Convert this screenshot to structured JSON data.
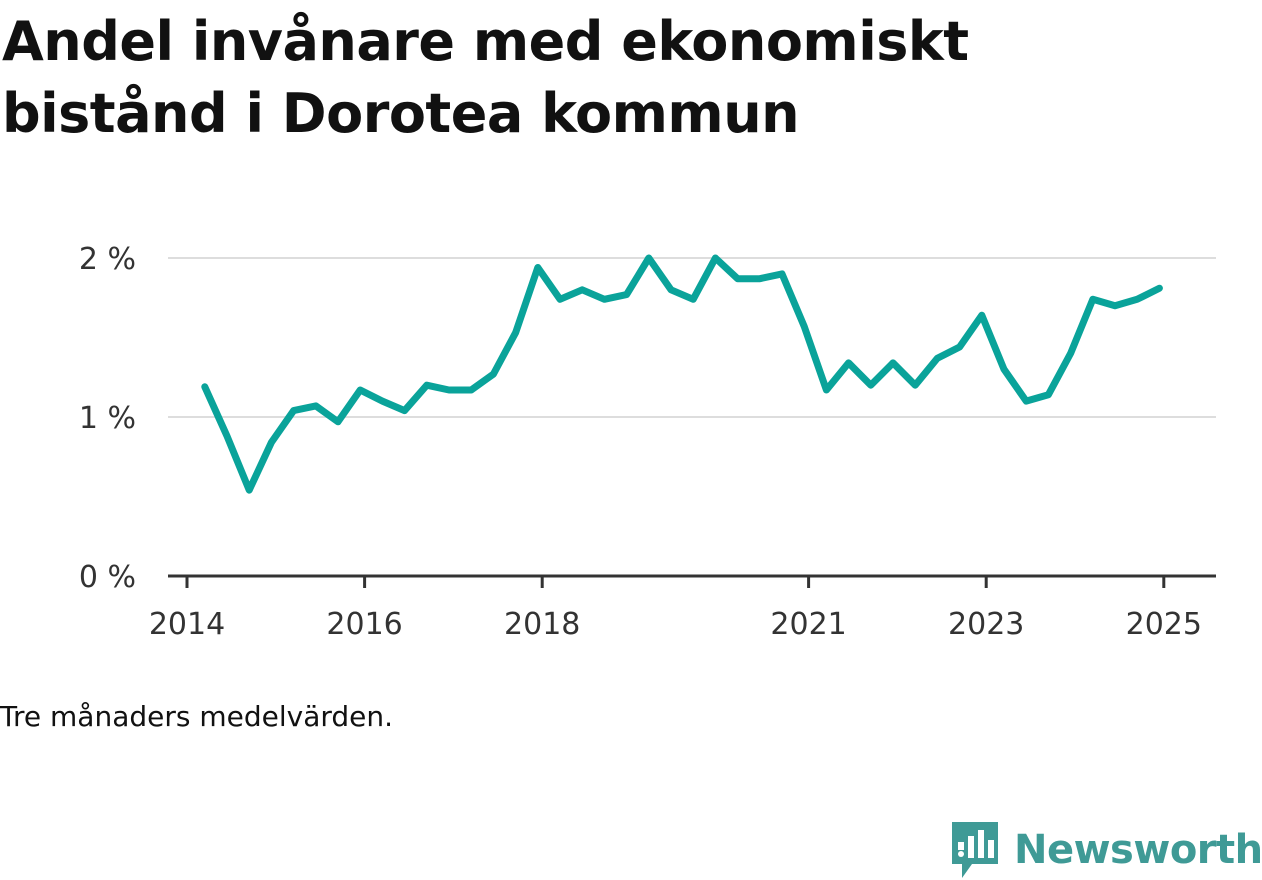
{
  "title": "Andel invånare med ekonomiskt bistånd i Dorotea kommun",
  "note": "Tre månaders medelvärden.",
  "brand": {
    "name": "Newsworthy",
    "color": "#3f9a96"
  },
  "colors": {
    "line": "#0aa39a",
    "grid": "#dddddd",
    "axis": "#333333"
  },
  "chart_data": {
    "type": "line",
    "title": "Andel invånare med ekonomiskt bistånd i Dorotea kommun",
    "xlabel": "",
    "ylabel": "",
    "x_start": 2014.2,
    "x_step": 0.25,
    "xlim": [
      2014,
      2025.3
    ],
    "ylim": [
      0,
      2
    ],
    "grid": true,
    "x_ticks": [
      2014,
      2016,
      2018,
      2021,
      2023,
      2025
    ],
    "x_tick_labels": [
      "2014",
      "2016",
      "2018",
      "2021",
      "2023",
      "2025"
    ],
    "y_ticks": [
      0,
      1,
      2
    ],
    "y_tick_labels": [
      "0 %",
      "1 %",
      "2 %"
    ],
    "series": [
      {
        "values": [
          1.19,
          0.88,
          0.54,
          0.84,
          1.04,
          1.07,
          0.97,
          1.17,
          1.1,
          1.04,
          1.2,
          1.17,
          1.17,
          1.27,
          1.53,
          1.94,
          1.74,
          1.8,
          1.74,
          1.77,
          2.0,
          1.8,
          1.74,
          2.0,
          1.87,
          1.87,
          1.9,
          1.57,
          1.17,
          1.34,
          1.2,
          1.34,
          1.2,
          1.37,
          1.44,
          1.64,
          1.3,
          1.1,
          1.14,
          1.4,
          1.74,
          1.7,
          1.74,
          1.81
        ]
      }
    ]
  }
}
